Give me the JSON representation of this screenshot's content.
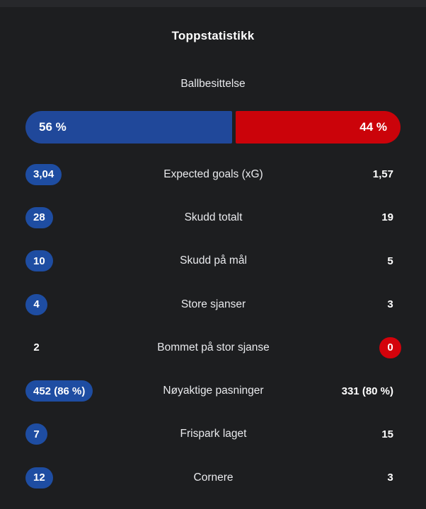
{
  "header": {
    "title": "Toppstatistikk"
  },
  "possession": {
    "label": "Ballbesittelse",
    "home_pct_label": "56 %",
    "away_pct_label": "44 %",
    "home_value": 56,
    "away_value": 44
  },
  "colors": {
    "home_pill": "#1e4da2",
    "away_pill": "#d4020b",
    "bar_home": "#20489a",
    "bar_away": "#cb030a",
    "card_background": "#1d1e20",
    "page_background": "#27282b"
  },
  "rows": [
    {
      "label": "Expected goals (xG)",
      "home": "3,04",
      "away": "1,57",
      "home_pill": true,
      "away_pill": false
    },
    {
      "label": "Skudd totalt",
      "home": "28",
      "away": "19",
      "home_pill": true,
      "away_pill": false
    },
    {
      "label": "Skudd på mål",
      "home": "10",
      "away": "5",
      "home_pill": true,
      "away_pill": false
    },
    {
      "label": "Store sjanser",
      "home": "4",
      "away": "3",
      "home_pill": true,
      "away_pill": false
    },
    {
      "label": "Bommet på stor sjanse",
      "home": "2",
      "away": "0",
      "home_pill": false,
      "away_pill": true
    },
    {
      "label": "Nøyaktige pasninger",
      "home": "452 (86 %)",
      "away": "331 (80 %)",
      "home_pill": true,
      "away_pill": false
    },
    {
      "label": "Frispark laget",
      "home": "7",
      "away": "15",
      "home_pill": true,
      "away_pill": false
    },
    {
      "label": "Cornere",
      "home": "12",
      "away": "3",
      "home_pill": true,
      "away_pill": false
    }
  ]
}
